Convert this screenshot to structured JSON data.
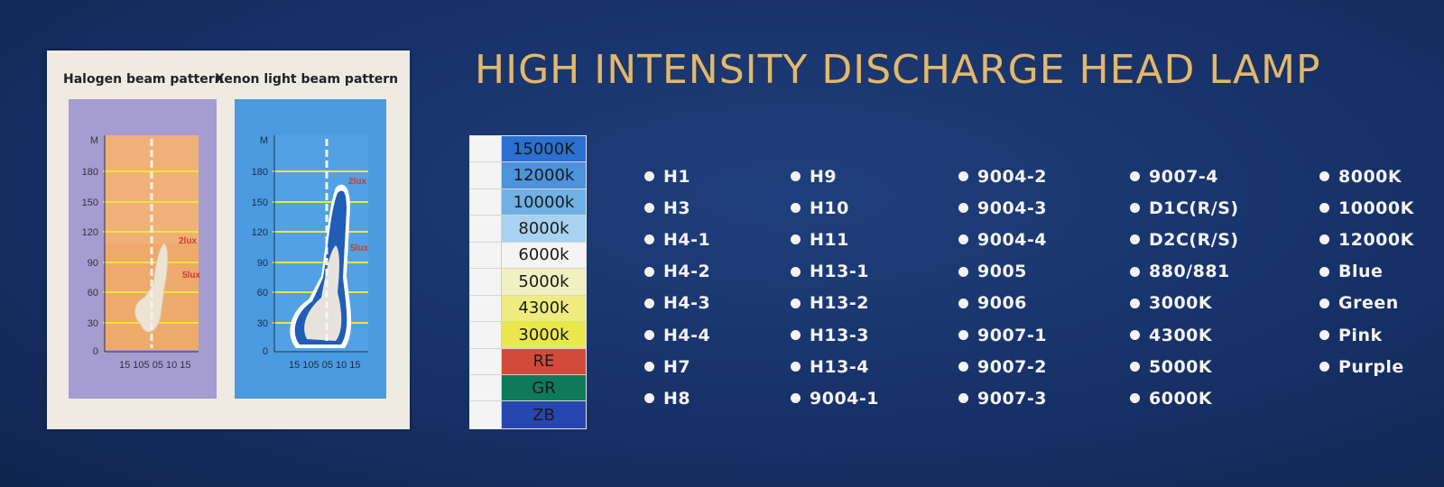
{
  "title": "HIGH INTENSITY DISCHARGE HEAD LAMP",
  "beam_panel": {
    "halogen_caption": "Halogen beam pattern",
    "xenon_caption": "Xenon light beam pattern",
    "y_unit": "M",
    "y_ticks": [
      "180",
      "150",
      "120",
      "90",
      "60",
      "30",
      "0"
    ],
    "x_ticks": [
      "15",
      "10",
      "5",
      "0",
      "5",
      "10",
      "15"
    ],
    "x_ticks_text": "15 105 05 10 15",
    "halogen_labels": [
      "2lux",
      "5lux"
    ],
    "xenon_labels": [
      "2lux",
      "5lux"
    ],
    "colors": {
      "halogen_bg": "#a59cd2",
      "halogen_chart": "#eea96c",
      "xenon_bg": "#4a9be0",
      "beam_blue": "#1f5db7",
      "grid_yellow": "#f3e632"
    }
  },
  "swatches": [
    {
      "label": "15000K",
      "color": "#2b6fd0"
    },
    {
      "label": "12000k",
      "color": "#4c92dc"
    },
    {
      "label": "10000k",
      "color": "#6fb1e4"
    },
    {
      "label": "8000k",
      "color": "#a8d2ef"
    },
    {
      "label": "6000k",
      "color": "#f4f4f4"
    },
    {
      "label": "5000k",
      "color": "#f0f0c0"
    },
    {
      "label": "4300k",
      "color": "#eeec80"
    },
    {
      "label": "3000k",
      "color": "#eae64e"
    },
    {
      "label": "RE",
      "color": "#d44a3a"
    },
    {
      "label": "GR",
      "color": "#0e7a5a"
    },
    {
      "label": "ZB",
      "color": "#2846b0"
    }
  ],
  "bulb_columns": [
    [
      "H1",
      "H3",
      "H4-1",
      "H4-2",
      "H4-3",
      "H4-4",
      "H7",
      "H8"
    ],
    [
      "H9",
      "H10",
      "H11",
      "H13-1",
      "H13-2",
      "H13-3",
      "H13-4",
      "9004-1"
    ],
    [
      "9004-2",
      "9004-3",
      "9004-4",
      "9005",
      "9006",
      "9007-1",
      "9007-2",
      "9007-3"
    ],
    [
      "9007-4",
      "D1C(R/S)",
      "D2C(R/S)",
      "880/881",
      "3000K",
      "4300K",
      "5000K",
      "6000K"
    ],
    [
      "8000K",
      "10000K",
      "12000K",
      "Blue",
      "Green",
      "Pink",
      "Purple"
    ]
  ]
}
